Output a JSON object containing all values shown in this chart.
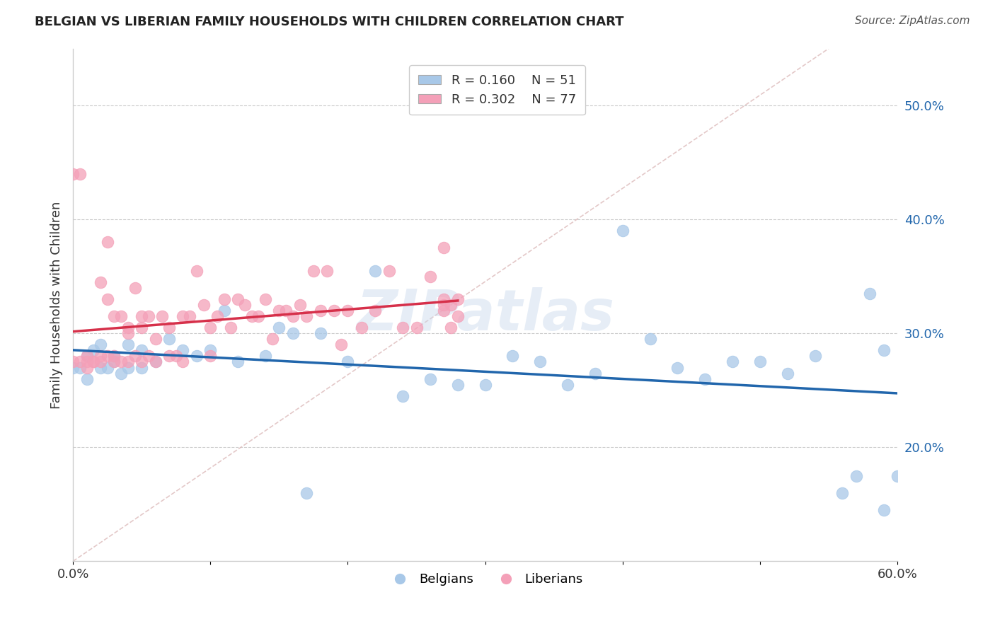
{
  "title": "BELGIAN VS LIBERIAN FAMILY HOUSEHOLDS WITH CHILDREN CORRELATION CHART",
  "source": "Source: ZipAtlas.com",
  "ylabel": "Family Households with Children",
  "xlim": [
    0.0,
    0.6
  ],
  "ylim": [
    0.1,
    0.55
  ],
  "xtick_vals": [
    0.0,
    0.1,
    0.2,
    0.3,
    0.4,
    0.5,
    0.6
  ],
  "xticklabels": [
    "0.0%",
    "",
    "",
    "",
    "",
    "",
    "60.0%"
  ],
  "yticks_right": [
    0.2,
    0.3,
    0.4,
    0.5
  ],
  "ytick_right_labels": [
    "20.0%",
    "30.0%",
    "40.0%",
    "50.0%"
  ],
  "belgian_color": "#a8c8e8",
  "liberian_color": "#f4a0b8",
  "belgian_line_color": "#2166ac",
  "liberian_line_color": "#d6304a",
  "diagonal_color": "#ddbbbb",
  "watermark": "ZIPatlas",
  "belgians_label": "Belgians",
  "liberians_label": "Liberians",
  "legend_R_belgian": "R = 0.160",
  "legend_N_belgian": "N = 51",
  "legend_R_liberian": "R = 0.302",
  "legend_N_liberian": "N = 77",
  "belgian_x": [
    0.0,
    0.005,
    0.01,
    0.01,
    0.015,
    0.02,
    0.02,
    0.025,
    0.03,
    0.03,
    0.035,
    0.04,
    0.04,
    0.05,
    0.05,
    0.06,
    0.07,
    0.08,
    0.09,
    0.1,
    0.11,
    0.12,
    0.14,
    0.15,
    0.16,
    0.17,
    0.18,
    0.2,
    0.22,
    0.24,
    0.26,
    0.28,
    0.3,
    0.32,
    0.34,
    0.36,
    0.38,
    0.4,
    0.42,
    0.44,
    0.46,
    0.48,
    0.5,
    0.52,
    0.54,
    0.56,
    0.57,
    0.58,
    0.59,
    0.59,
    0.6
  ],
  "belgian_y": [
    0.27,
    0.27,
    0.28,
    0.26,
    0.285,
    0.27,
    0.29,
    0.27,
    0.28,
    0.275,
    0.265,
    0.29,
    0.27,
    0.285,
    0.27,
    0.275,
    0.295,
    0.285,
    0.28,
    0.285,
    0.32,
    0.275,
    0.28,
    0.305,
    0.3,
    0.16,
    0.3,
    0.275,
    0.355,
    0.245,
    0.26,
    0.255,
    0.255,
    0.28,
    0.275,
    0.255,
    0.265,
    0.39,
    0.295,
    0.27,
    0.26,
    0.275,
    0.275,
    0.265,
    0.28,
    0.16,
    0.175,
    0.335,
    0.285,
    0.145,
    0.175
  ],
  "liberian_x": [
    0.0,
    0.0,
    0.005,
    0.005,
    0.01,
    0.01,
    0.01,
    0.015,
    0.015,
    0.02,
    0.02,
    0.02,
    0.025,
    0.025,
    0.025,
    0.03,
    0.03,
    0.03,
    0.035,
    0.035,
    0.04,
    0.04,
    0.04,
    0.045,
    0.045,
    0.05,
    0.05,
    0.05,
    0.055,
    0.055,
    0.06,
    0.06,
    0.065,
    0.07,
    0.07,
    0.075,
    0.08,
    0.08,
    0.085,
    0.09,
    0.095,
    0.1,
    0.1,
    0.105,
    0.11,
    0.115,
    0.12,
    0.125,
    0.13,
    0.135,
    0.14,
    0.145,
    0.15,
    0.155,
    0.16,
    0.165,
    0.17,
    0.175,
    0.18,
    0.185,
    0.19,
    0.195,
    0.2,
    0.21,
    0.22,
    0.23,
    0.24,
    0.25,
    0.26,
    0.27,
    0.27,
    0.27,
    0.27,
    0.275,
    0.275,
    0.28,
    0.28
  ],
  "liberian_y": [
    0.275,
    0.44,
    0.275,
    0.44,
    0.27,
    0.28,
    0.275,
    0.275,
    0.275,
    0.275,
    0.28,
    0.345,
    0.28,
    0.33,
    0.38,
    0.275,
    0.28,
    0.315,
    0.275,
    0.315,
    0.275,
    0.305,
    0.3,
    0.28,
    0.34,
    0.275,
    0.305,
    0.315,
    0.28,
    0.315,
    0.275,
    0.295,
    0.315,
    0.28,
    0.305,
    0.28,
    0.275,
    0.315,
    0.315,
    0.355,
    0.325,
    0.28,
    0.305,
    0.315,
    0.33,
    0.305,
    0.33,
    0.325,
    0.315,
    0.315,
    0.33,
    0.295,
    0.32,
    0.32,
    0.315,
    0.325,
    0.315,
    0.355,
    0.32,
    0.355,
    0.32,
    0.29,
    0.32,
    0.305,
    0.32,
    0.355,
    0.305,
    0.305,
    0.35,
    0.325,
    0.33,
    0.32,
    0.375,
    0.305,
    0.325,
    0.315,
    0.33
  ]
}
